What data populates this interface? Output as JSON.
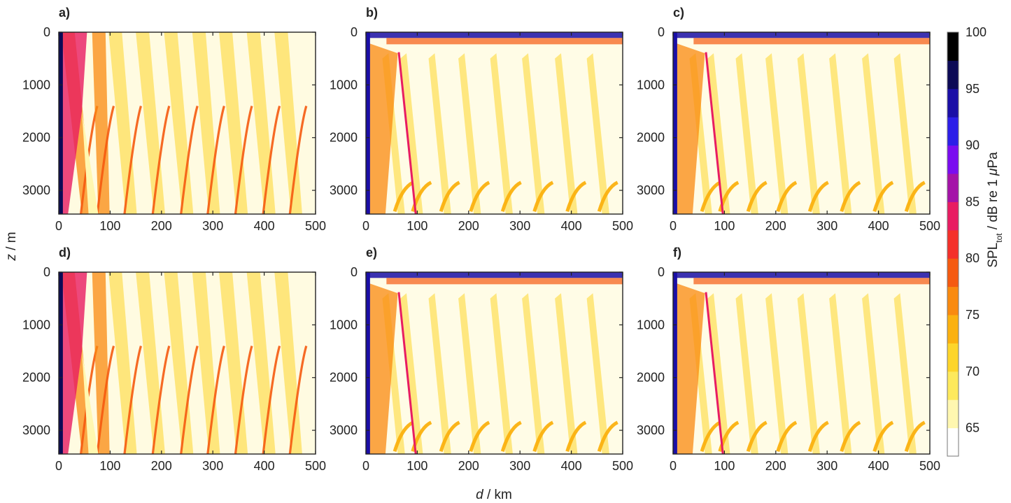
{
  "chart_data": {
    "type": "heatmap",
    "description_axes": {
      "xlabel_var": "d",
      "xlabel_unit": " / km",
      "ylabel_var": "z",
      "ylabel_unit": " / m",
      "xlim": [
        0,
        500
      ],
      "ylim": [
        0,
        3450
      ],
      "y_inverted": true,
      "xticks": [
        0,
        100,
        200,
        300,
        400,
        500
      ],
      "yticks": [
        0,
        1000,
        2000,
        3000
      ],
      "grid": false
    },
    "colorbar": {
      "label_main": "SPL",
      "label_sub": "tot",
      "label_rest": " / dB re 1 ",
      "label_mu": "μ",
      "label_unit": "Pa",
      "min": 62.5,
      "max": 100,
      "step": 2.5,
      "ticks": [
        65,
        70,
        75,
        80,
        85,
        90,
        95,
        100
      ],
      "colors": [
        "#ffffff",
        "#fff7b0",
        "#fde95c",
        "#fdd52a",
        "#fbb10f",
        "#f98a0f",
        "#f55a10",
        "#f4302a",
        "#e81c62",
        "#a412a8",
        "#7a0cf0",
        "#2c1ee8",
        "#1a0ea6",
        "#0c0a55",
        "#000000"
      ]
    },
    "panels": [
      {
        "label": "a)",
        "model": "shallow",
        "water_depth_m": 3450
      },
      {
        "label": "b)",
        "model": "surface_duct",
        "water_depth_m": 3450
      },
      {
        "label": "c)",
        "model": "surface_duct",
        "water_depth_m": 3450
      },
      {
        "label": "d)",
        "model": "shallow",
        "water_depth_m": 3450
      },
      {
        "label": "e)",
        "model": "surface_duct",
        "water_depth_m": 3450
      },
      {
        "label": "f)",
        "model": "surface_duct",
        "water_depth_m": 3450
      }
    ],
    "caustic_ranges_km": {
      "shallow": [
        45,
        77,
        130,
        185,
        240,
        292,
        346,
        400,
        452
      ],
      "surface_duct": [
        62,
        97,
        152,
        210,
        272,
        334,
        398,
        460
      ]
    }
  }
}
